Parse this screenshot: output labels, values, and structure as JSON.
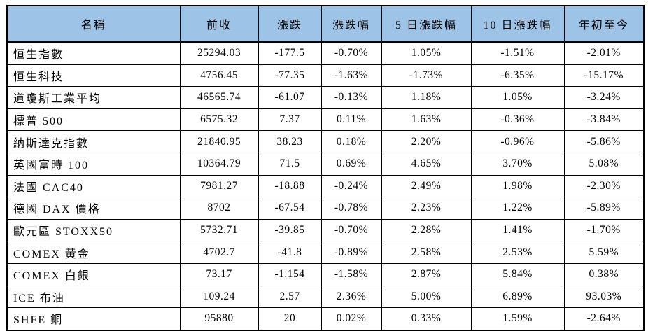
{
  "colors": {
    "header_bg": "#9dc3e6",
    "border": "#000000",
    "text": "#000000",
    "row_bg": "#ffffff"
  },
  "table": {
    "columns": [
      {
        "key": "name",
        "label": "名稱"
      },
      {
        "key": "prev-close",
        "label": "前收"
      },
      {
        "key": "change",
        "label": "漲跌"
      },
      {
        "key": "change-pct",
        "label": "漲跌幅"
      },
      {
        "key": "5d-pct",
        "label": "5 日漲跌幅"
      },
      {
        "key": "10d-pct",
        "label": "10 日漲跌幅"
      },
      {
        "key": "ytd",
        "label": "年初至今"
      }
    ],
    "rows": [
      [
        "恒生指數",
        "25294.03",
        "-177.5",
        "-0.70%",
        "1.05%",
        "-1.51%",
        "-2.01%"
      ],
      [
        "恒生科技",
        "4756.45",
        "-77.35",
        "-1.63%",
        "-1.73%",
        "-6.35%",
        "-15.17%"
      ],
      [
        "道瓊斯工業平均",
        "46565.74",
        "-61.07",
        "-0.13%",
        "1.18%",
        "1.05%",
        "-3.24%"
      ],
      [
        "標普 500",
        "6575.32",
        "7.37",
        "0.11%",
        "1.63%",
        "-0.36%",
        "-3.84%"
      ],
      [
        "納斯達克指數",
        "21840.95",
        "38.23",
        "0.18%",
        "2.20%",
        "-0.96%",
        "-5.86%"
      ],
      [
        "英國富時 100",
        "10364.79",
        "71.5",
        "0.69%",
        "4.65%",
        "3.70%",
        "5.08%"
      ],
      [
        "法國 CAC40",
        "7981.27",
        "-18.88",
        "-0.24%",
        "2.49%",
        "1.98%",
        "-2.30%"
      ],
      [
        "德國 DAX 價格",
        "8702",
        "-67.54",
        "-0.78%",
        "2.23%",
        "1.22%",
        "-5.89%"
      ],
      [
        "歐元區 STOXX50",
        "5732.71",
        "-39.85",
        "-0.70%",
        "2.28%",
        "1.41%",
        "-1.70%"
      ],
      [
        "COMEX 黃金",
        "4702.7",
        "-41.8",
        "-0.89%",
        "2.58%",
        "2.53%",
        "5.59%"
      ],
      [
        "COMEX 白銀",
        "73.17",
        "-1.154",
        "-1.58%",
        "2.87%",
        "5.84%",
        "0.38%"
      ],
      [
        "ICE 布油",
        "109.24",
        "2.57",
        "2.36%",
        "5.00%",
        "6.89%",
        "93.03%"
      ],
      [
        "SHFE 銅",
        "95880",
        "20",
        "0.02%",
        "0.33%",
        "1.59%",
        "-2.64%"
      ]
    ]
  }
}
